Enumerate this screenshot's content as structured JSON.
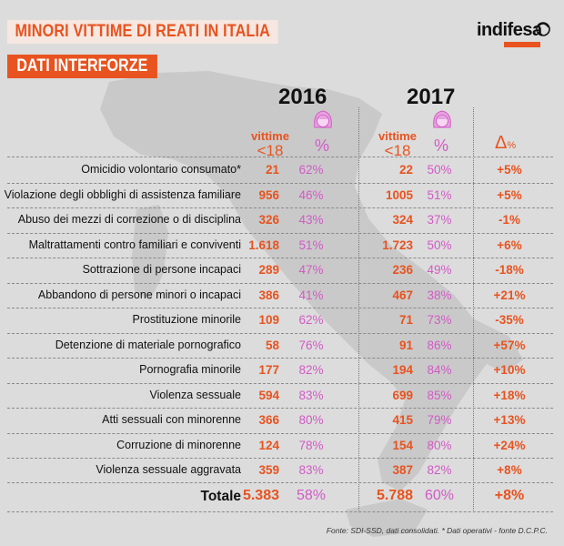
{
  "header": {
    "title": "MINORI VITTIME DI REATI IN ITALIA",
    "subtitle": "DATI INTERFORZE",
    "logo": "indifesa"
  },
  "columns": {
    "year_2016": "2016",
    "year_2017": "2017",
    "victims_label": "vittime",
    "under18_label": "<18",
    "percent_label": "%",
    "delta_label": "Δ",
    "delta_unit": "%"
  },
  "rows": [
    {
      "label": "Omicidio volontario consumato*",
      "v2016": "21",
      "p2016": "62%",
      "v2017": "22",
      "p2017": "50%",
      "delta": "+5%"
    },
    {
      "label": "Violazione degli obblighi di assistenza familiare",
      "v2016": "956",
      "p2016": "46%",
      "v2017": "1005",
      "p2017": "51%",
      "delta": "+5%"
    },
    {
      "label": "Abuso dei mezzi di correzione o di disciplina",
      "v2016": "326",
      "p2016": "43%",
      "v2017": "324",
      "p2017": "37%",
      "delta": "-1%"
    },
    {
      "label": "Maltrattamenti contro familiari e conviventi",
      "v2016": "1.618",
      "p2016": "51%",
      "v2017": "1.723",
      "p2017": "50%",
      "delta": "+6%"
    },
    {
      "label": "Sottrazione di persone incapaci",
      "v2016": "289",
      "p2016": "47%",
      "v2017": "236",
      "p2017": "49%",
      "delta": "-18%"
    },
    {
      "label": "Abbandono di persone minori o incapaci",
      "v2016": "386",
      "p2016": "41%",
      "v2017": "467",
      "p2017": "38%",
      "delta": "+21%"
    },
    {
      "label": "Prostituzione minorile",
      "v2016": "109",
      "p2016": "62%",
      "v2017": "71",
      "p2017": "73%",
      "delta": "-35%"
    },
    {
      "label": "Detenzione di materiale pornografico",
      "v2016": "58",
      "p2016": "76%",
      "v2017": "91",
      "p2017": "86%",
      "delta": "+57%"
    },
    {
      "label": "Pornografia minorile",
      "v2016": "177",
      "p2016": "82%",
      "v2017": "194",
      "p2017": "84%",
      "delta": "+10%"
    },
    {
      "label": "Violenza sessuale",
      "v2016": "594",
      "p2016": "83%",
      "v2017": "699",
      "p2017": "85%",
      "delta": "+18%"
    },
    {
      "label": "Atti sessuali con minorenne",
      "v2016": "366",
      "p2016": "80%",
      "v2017": "415",
      "p2017": "79%",
      "delta": "+13%"
    },
    {
      "label": "Corruzione di minorenne",
      "v2016": "124",
      "p2016": "78%",
      "v2017": "154",
      "p2017": "80%",
      "delta": "+24%"
    },
    {
      "label": "Violenza sessuale aggravata",
      "v2016": "359",
      "p2016": "83%",
      "v2017": "387",
      "p2017": "82%",
      "delta": "+8%"
    }
  ],
  "total": {
    "label": "Totale",
    "v2016": "5.383",
    "p2016": "58%",
    "v2017": "5.788",
    "p2017": "60%",
    "delta": "+8%"
  },
  "footer": "Fonte: SDI-SSD, dati consolidati.  * Dati operativi - fonte D.C.P.C.",
  "colors": {
    "orange": "#e8531f",
    "pink": "#d35ac6",
    "background": "#dcdcdc",
    "map": "#c9c9c9"
  }
}
